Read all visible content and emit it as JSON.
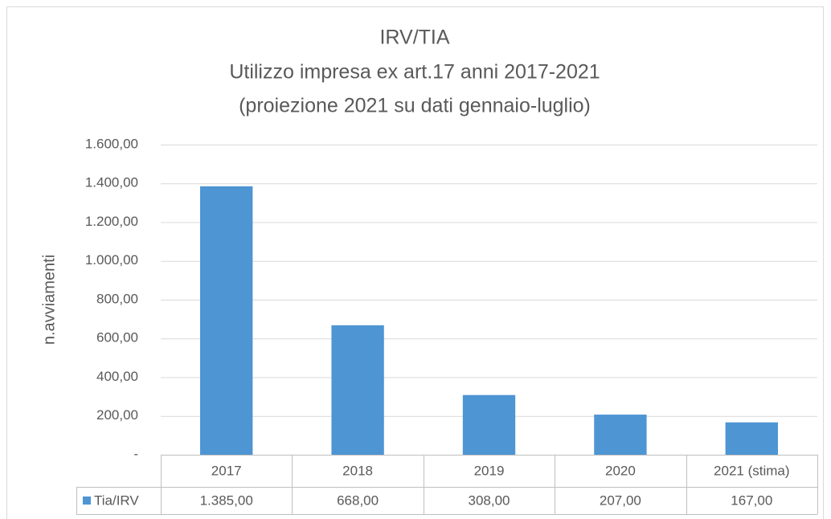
{
  "chart_data": {
    "type": "bar",
    "title": [
      "IRV/TIA",
      "Utilizzo impresa ex art.17 anni 2017-2021",
      "(proiezione 2021 su dati gennaio-luglio)"
    ],
    "ylabel": "n.avviamenti",
    "categories": [
      "2017",
      "2018",
      "2019",
      "2020",
      "2021 (stima)"
    ],
    "series": [
      {
        "name": "Tia/IRV",
        "color": "#4e95d3",
        "values": [
          1385,
          668,
          308,
          207,
          167
        ],
        "value_labels": [
          "1.385,00",
          "668,00",
          "308,00",
          "207,00",
          "167,00"
        ]
      }
    ],
    "ylim": [
      0,
      1600
    ],
    "yticks": [
      {
        "value": 0,
        "label": "-"
      },
      {
        "value": 200,
        "label": "200,00"
      },
      {
        "value": 400,
        "label": "400,00"
      },
      {
        "value": 600,
        "label": "600,00"
      },
      {
        "value": 800,
        "label": "800,00"
      },
      {
        "value": 1000,
        "label": "1.000,00"
      },
      {
        "value": 1200,
        "label": "1.200,00"
      },
      {
        "value": 1400,
        "label": "1.400,00"
      },
      {
        "value": 1600,
        "label": "1.600,00"
      }
    ],
    "grid": true
  }
}
